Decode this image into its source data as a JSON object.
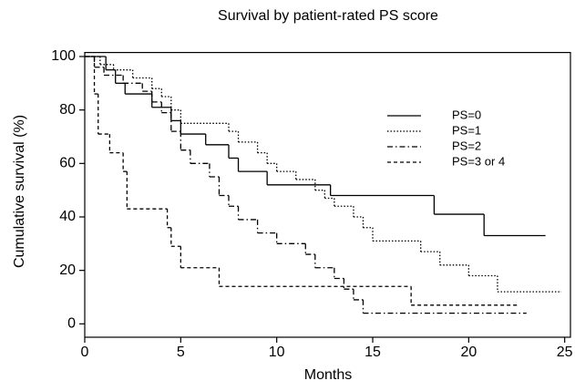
{
  "chart_data": {
    "type": "step",
    "title": "Survival by patient-rated PS score",
    "x_label": "Months",
    "y_label": "Cumulative survival (%)",
    "xlim": [
      0,
      25.3
    ],
    "ylim": [
      -5,
      101.5
    ],
    "xticks": [
      0,
      5,
      10,
      15,
      20,
      25
    ],
    "yticks": [
      0,
      20,
      40,
      60,
      80,
      100
    ],
    "series": [
      {
        "name": "PS=0",
        "color": "#000000",
        "dash": "solid",
        "x": [
          0,
          1.1,
          1.6,
          2.1,
          3.5,
          4.5,
          5,
          6.3,
          7.5,
          8,
          9.5,
          12.8,
          18.2,
          20.8,
          24
        ],
        "values": [
          100,
          95,
          90,
          86,
          81,
          76,
          71,
          67,
          62,
          57,
          52,
          48,
          41,
          33,
          33
        ]
      },
      {
        "name": "PS=1",
        "color": "#000000",
        "dash": "dotted",
        "x": [
          0,
          0.8,
          1.5,
          2.5,
          3.5,
          4,
          4.5,
          5,
          7.5,
          8,
          9,
          9.5,
          10,
          11,
          12,
          12.5,
          13,
          14,
          14.5,
          15,
          17.5,
          18.5,
          20,
          21.5,
          24.8
        ],
        "values": [
          100,
          97,
          95,
          92,
          88,
          85,
          80,
          75,
          72,
          68,
          64,
          60,
          57,
          54,
          50,
          47,
          44,
          40,
          36,
          31,
          27,
          22,
          18,
          12,
          12
        ]
      },
      {
        "name": "PS=2",
        "color": "#000000",
        "dash": "dashdot",
        "x": [
          0,
          0.5,
          1,
          2,
          3,
          3.5,
          4,
          4.5,
          5,
          5.5,
          6.5,
          7,
          7.5,
          8,
          9,
          10,
          11.5,
          12,
          13,
          13.5,
          14,
          14.5,
          23
        ],
        "values": [
          100,
          96,
          93,
          90,
          87,
          83,
          79,
          72,
          65,
          60,
          55,
          48,
          44,
          39,
          34,
          30,
          26,
          21,
          17,
          13,
          9,
          4,
          4
        ]
      },
      {
        "name": "PS=3 or 4",
        "color": "#000000",
        "dash": "dashed",
        "x": [
          0,
          0.5,
          0.7,
          1.3,
          2,
          2.2,
          4.3,
          4.5,
          5,
          7,
          17,
          22.5
        ],
        "values": [
          100,
          86,
          71,
          64,
          57,
          43,
          36,
          29,
          21,
          14,
          7,
          7
        ]
      }
    ]
  }
}
